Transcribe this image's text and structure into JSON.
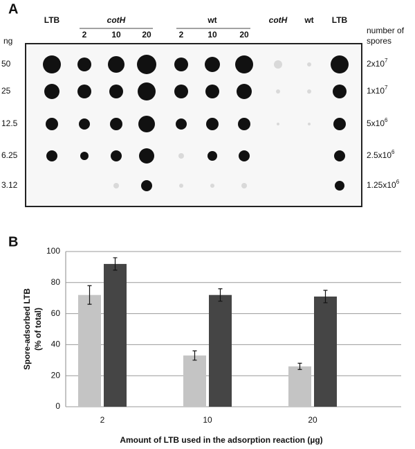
{
  "panel_a": {
    "label": "A",
    "col_headers": [
      "LTB",
      "cotH",
      "wt",
      "cotH",
      "wt",
      "LTB"
    ],
    "sub_cols": [
      "2",
      "10",
      "20",
      "2",
      "10",
      "20"
    ],
    "ng_label": "ng",
    "spores_label": [
      "number of",
      "spores"
    ],
    "ng_values": [
      "50",
      "25",
      "12.5",
      "6.25",
      "3.12"
    ],
    "spore_counts": [
      {
        "base": "2x10",
        "exp": "7"
      },
      {
        "base": "1x10",
        "exp": "7"
      },
      {
        "base": "5x10",
        "exp": "6"
      },
      {
        "base": "2.5x10",
        "exp": "6"
      },
      {
        "base": "1.25x10",
        "exp": "6"
      }
    ]
  },
  "panel_b_label": "B",
  "chart_data": {
    "type": "bar",
    "x_label": "Amount of LTB used in the adsorption reaction (µg)",
    "y_label": [
      "Spore-adsorbed LTB",
      "(% of total)"
    ],
    "categories": [
      "2",
      "10",
      "20"
    ],
    "series": [
      {
        "color": "#c4c4c4",
        "values": [
          72,
          33,
          26
        ],
        "errors": [
          6,
          3,
          2
        ]
      },
      {
        "color": "#454545",
        "values": [
          92,
          72,
          71
        ],
        "errors": [
          4,
          4,
          4
        ]
      }
    ],
    "ylim": [
      0,
      100
    ],
    "yticks": [
      0,
      20,
      40,
      60,
      80,
      100
    ],
    "grid": true
  }
}
